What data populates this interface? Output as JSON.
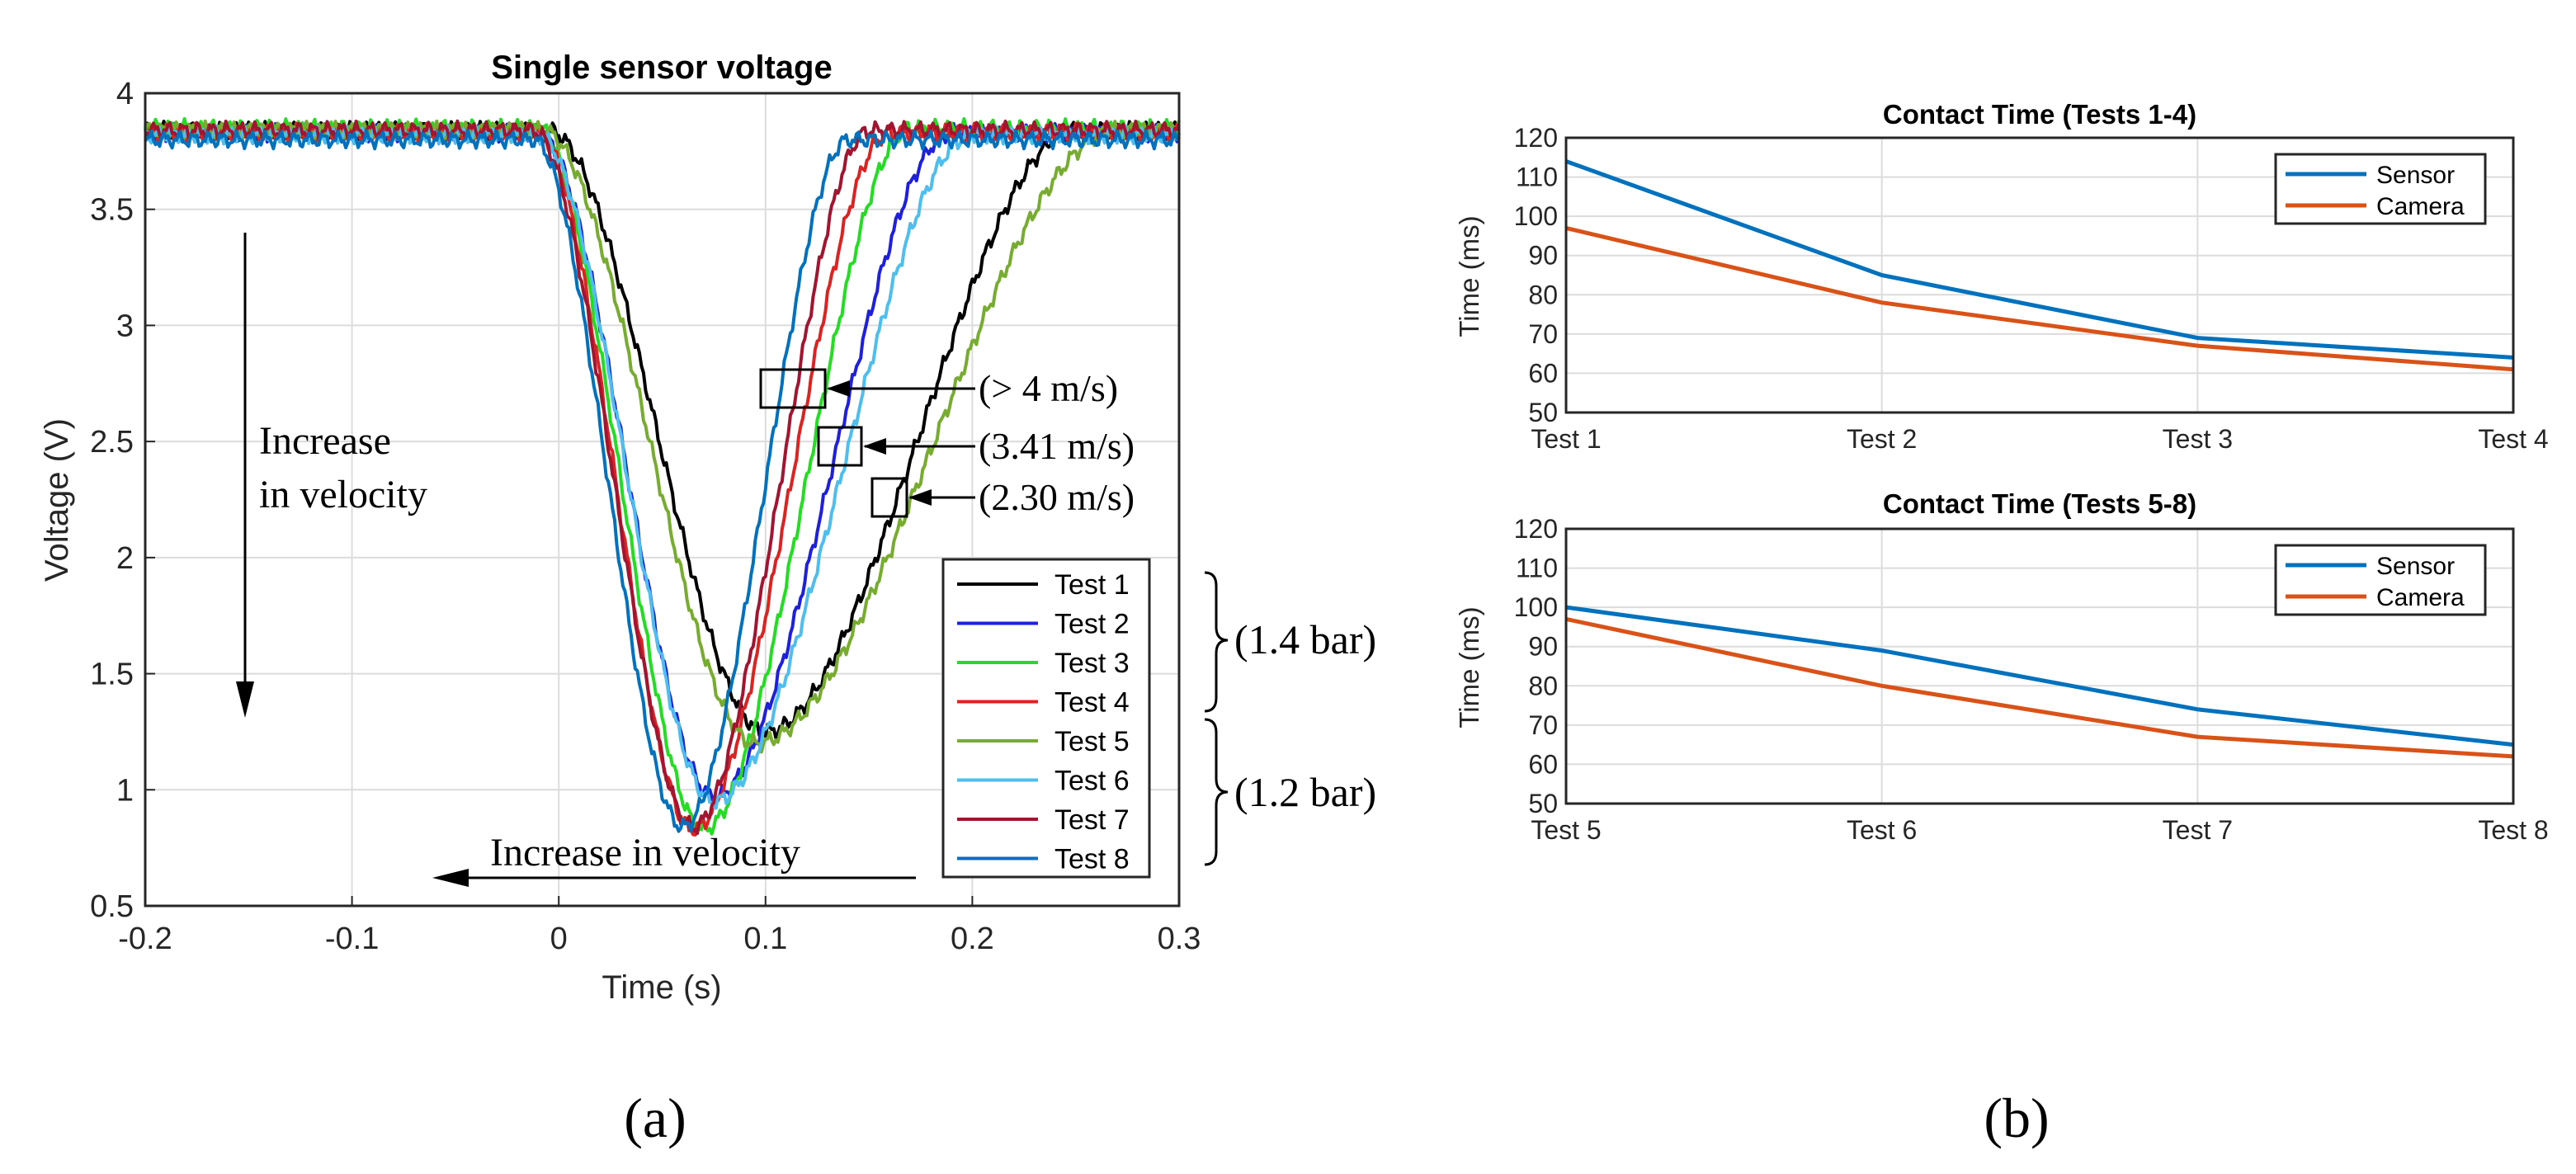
{
  "panel_labels": [
    "(a)",
    "(b)"
  ],
  "chart_data": [
    {
      "type": "line",
      "title": "Single sensor voltage",
      "xlabel": "Time (s)",
      "ylabel": "Voltage (V)",
      "xlim": [
        -0.2,
        0.3
      ],
      "ylim": [
        0.5,
        4
      ],
      "xticks": [
        -0.2,
        -0.1,
        0,
        0.1,
        0.2,
        0.3
      ],
      "xtick_labels": [
        "-0.2",
        "-0.1",
        "0",
        "0.1",
        "0.2",
        "0.3"
      ],
      "yticks": [
        0.5,
        1,
        1.5,
        2,
        2.5,
        3,
        3.5,
        4
      ],
      "ytick_labels": [
        "0.5",
        "1",
        "1.5",
        "2",
        "2.5",
        "3",
        "3.5",
        "4"
      ],
      "grid": true,
      "legend_position": "bottom-right",
      "series": [
        {
          "name": "Test 1",
          "color": "#000000",
          "baseline": 3.84,
          "minimum": 1.25,
          "t_min": 0.1,
          "t_start": -0.005,
          "t_recover": 0.25
        },
        {
          "name": "Test 2",
          "color": "#1f1fe0",
          "baseline": 3.83,
          "minimum": 0.97,
          "t_min": 0.075,
          "t_start": -0.01,
          "t_recover": 0.19
        },
        {
          "name": "Test 3",
          "color": "#22dd22",
          "baseline": 3.85,
          "minimum": 0.83,
          "t_min": 0.07,
          "t_start": -0.01,
          "t_recover": 0.17
        },
        {
          "name": "Test 4",
          "color": "#dd2222",
          "baseline": 3.83,
          "minimum": 0.83,
          "t_min": 0.065,
          "t_start": -0.01,
          "t_recover": 0.16
        },
        {
          "name": "Test 5",
          "color": "#77ac30",
          "baseline": 3.84,
          "minimum": 1.2,
          "t_min": 0.095,
          "t_start": -0.008,
          "t_recover": 0.27
        },
        {
          "name": "Test 6",
          "color": "#4dbeee",
          "baseline": 3.82,
          "minimum": 0.95,
          "t_min": 0.075,
          "t_start": -0.01,
          "t_recover": 0.2
        },
        {
          "name": "Test 7",
          "color": "#a2142f",
          "baseline": 3.84,
          "minimum": 0.84,
          "t_min": 0.065,
          "t_start": -0.012,
          "t_recover": 0.15
        },
        {
          "name": "Test 8",
          "color": "#0072bd",
          "baseline": 3.8,
          "minimum": 0.84,
          "t_min": 0.06,
          "t_start": -0.012,
          "t_recover": 0.14
        }
      ],
      "annotations": {
        "velocity_labels": [
          "(> 4 m/s)",
          "(3.41 m/s)",
          "(2.30 m/s)"
        ],
        "increase_vertical": [
          "Increase",
          "in velocity"
        ],
        "increase_horizontal": "Increase in velocity",
        "pressure_labels": [
          "(1.4 bar)",
          "(1.2 bar)"
        ]
      }
    },
    {
      "type": "line",
      "title": "Contact Time (Tests 1-4)",
      "xlabel": "",
      "ylabel": "Time (ms)",
      "categories": [
        "Test 1",
        "Test 2",
        "Test 3",
        "Test 4"
      ],
      "ylim": [
        50,
        120
      ],
      "yticks": [
        50,
        60,
        70,
        80,
        90,
        100,
        110,
        120
      ],
      "grid": true,
      "legend_position": "top-right",
      "series": [
        {
          "name": "Sensor",
          "color": "#0072bd",
          "values": [
            114,
            85,
            69,
            64
          ]
        },
        {
          "name": "Camera",
          "color": "#d95319",
          "values": [
            97,
            78,
            67,
            61
          ]
        }
      ]
    },
    {
      "type": "line",
      "title": "Contact Time (Tests 5-8)",
      "xlabel": "",
      "ylabel": "Time (ms)",
      "categories": [
        "Test 5",
        "Test 6",
        "Test 7",
        "Test 8"
      ],
      "ylim": [
        50,
        120
      ],
      "yticks": [
        50,
        60,
        70,
        80,
        90,
        100,
        110,
        120
      ],
      "grid": true,
      "legend_position": "top-right",
      "series": [
        {
          "name": "Sensor",
          "color": "#0072bd",
          "values": [
            100,
            89,
            74,
            65
          ]
        },
        {
          "name": "Camera",
          "color": "#d95319",
          "values": [
            97,
            80,
            67,
            62
          ]
        }
      ]
    }
  ]
}
